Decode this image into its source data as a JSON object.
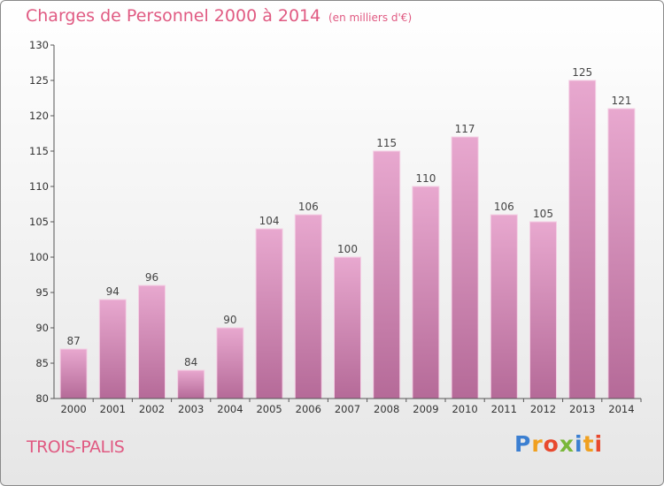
{
  "chart_data": {
    "type": "bar",
    "title": "Charges de Personnel 2000 à 2014",
    "subtitle": "(en milliers d'€)",
    "categories": [
      "2000",
      "2001",
      "2002",
      "2003",
      "2004",
      "2005",
      "2006",
      "2007",
      "2008",
      "2009",
      "2010",
      "2011",
      "2012",
      "2013",
      "2014"
    ],
    "values": [
      87,
      94,
      96,
      84,
      90,
      104,
      106,
      100,
      115,
      110,
      117,
      106,
      105,
      125,
      121
    ],
    "ylim": [
      80,
      130
    ],
    "yticks": [
      80,
      85,
      90,
      95,
      100,
      105,
      110,
      115,
      120,
      125,
      130
    ],
    "grid": false,
    "bar_color_top": "#e8a8cf",
    "bar_color_bottom": "#b56a98"
  },
  "footer": {
    "city": "TROIS-PALIS",
    "logo_letters": [
      {
        "ch": "P",
        "color": "#3b7fd1"
      },
      {
        "ch": "r",
        "color": "#f0a020"
      },
      {
        "ch": "o",
        "color": "#e8492e"
      },
      {
        "ch": "x",
        "color": "#7ab73a"
      },
      {
        "ch": "i",
        "color": "#3b7fd1"
      },
      {
        "ch": "t",
        "color": "#f0a020"
      },
      {
        "ch": "i",
        "color": "#e8492e"
      }
    ]
  },
  "theme": {
    "accent": "#e05a82",
    "axis": "#555555"
  }
}
